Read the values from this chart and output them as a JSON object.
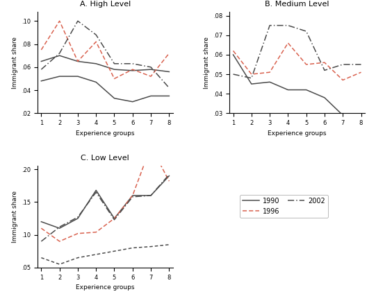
{
  "x": [
    1,
    2,
    3,
    4,
    5,
    6,
    7,
    8
  ],
  "high_1990_upper": [
    0.065,
    0.07,
    0.065,
    0.063,
    0.058,
    0.057,
    0.058,
    0.056
  ],
  "high_1990_lower": [
    0.048,
    0.052,
    0.052,
    0.047,
    0.033,
    0.03,
    0.035,
    0.035
  ],
  "high_1996": [
    0.075,
    0.1,
    0.065,
    0.082,
    0.05,
    0.058,
    0.052,
    0.072
  ],
  "high_2002": [
    0.058,
    0.072,
    0.1,
    0.088,
    0.063,
    0.063,
    0.06,
    0.042
  ],
  "med_1990": [
    0.06,
    0.045,
    0.046,
    0.042,
    0.042,
    0.038,
    0.029,
    0.028
  ],
  "med_1996": [
    0.062,
    0.05,
    0.051,
    0.066,
    0.055,
    0.056,
    0.047,
    0.051
  ],
  "med_2002": [
    0.05,
    0.048,
    0.075,
    0.075,
    0.072,
    0.052,
    0.055,
    0.055
  ],
  "low_1990": [
    0.065,
    0.055,
    0.065,
    0.07,
    0.075,
    0.08,
    0.082,
    0.085
  ],
  "low_1990b": [
    0.12,
    0.11,
    0.125,
    0.168,
    0.125,
    0.16,
    0.16,
    0.19
  ],
  "low_1996": [
    0.11,
    0.09,
    0.102,
    0.104,
    0.125,
    0.16,
    0.235,
    0.182
  ],
  "low_2002": [
    0.09,
    0.112,
    0.127,
    0.165,
    0.123,
    0.158,
    0.16,
    0.192
  ],
  "color_1990": "#4a4a4a",
  "color_1996": "#d9614e",
  "color_2002": "#4a4a4a",
  "title_A": "A. High Level",
  "title_B": "B. Medium Level",
  "title_C": "C. Low Level",
  "xlabel": "Experience groups",
  "ylabel": "Immigrant share",
  "legend_1990": "1990",
  "legend_1996": "1996",
  "legend_2002": "2002",
  "high_ylim": [
    0.02,
    0.108
  ],
  "med_ylim": [
    0.03,
    0.082
  ],
  "low_ylim": [
    0.05,
    0.205
  ],
  "high_yticks": [
    0.02,
    0.04,
    0.06,
    0.08,
    0.1
  ],
  "med_yticks": [
    0.03,
    0.04,
    0.05,
    0.06,
    0.07,
    0.08
  ],
  "low_yticks": [
    0.05,
    0.1,
    0.15,
    0.2
  ]
}
